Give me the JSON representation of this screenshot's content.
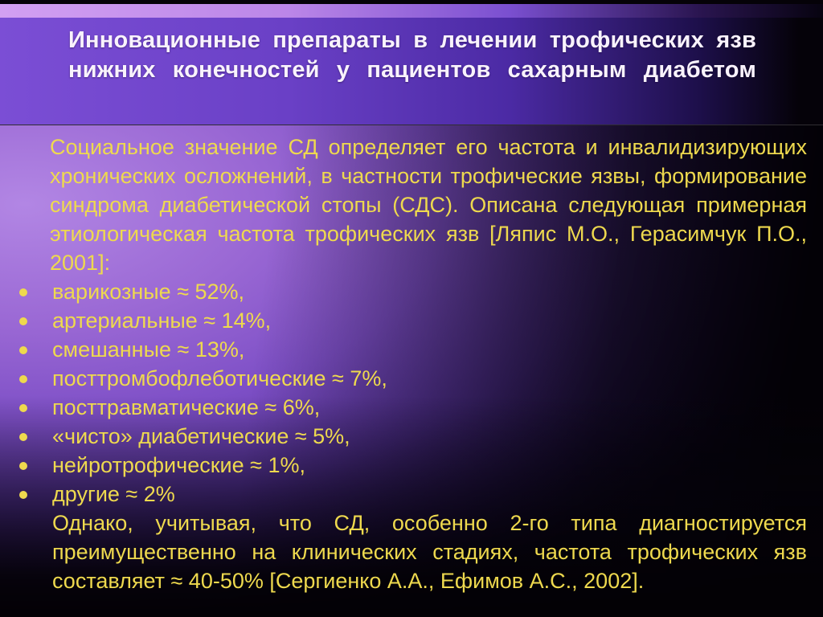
{
  "slide": {
    "title": "Инновационные препараты в лечении трофических язв нижних конечностей у пациентов сахарным диабетом",
    "body": {
      "intro": "Социальное значение СД определяет его частота и инвалидизирующих хронических осложнений, в частности трофические язвы, формирование синдрома диабетической стопы (СДС). Описана следующая примерная этиологическая частота трофических язв [Ляпис М.О., Герасимчук П.О., 2001]:",
      "bullets": [
        "варикозные ≈ 52%,",
        "артериальные ≈ 14%,",
        "смешанные ≈ 13%,",
        "посттромбофлеботические ≈ 7%,",
        "посттравматические ≈ 6%,",
        "«чисто» диабетические ≈ 5%,",
        "нейротрофические ≈ 1%,",
        "другие ≈ 2%"
      ],
      "outro": "Однако, учитывая, что СД, особенно 2-го типа диагностируется преимущественно на клинических стадиях, частота трофических язв составляет ≈ 40-50% [Сергиенко А.А., Ефимов А.С., 2002]."
    },
    "colors": {
      "title_text": "#f9f3fc",
      "body_text": "#eed94e",
      "accent_purple": "#7b4ed5",
      "highlight_lavender": "#b286e4",
      "background_dark": "#040207"
    }
  }
}
